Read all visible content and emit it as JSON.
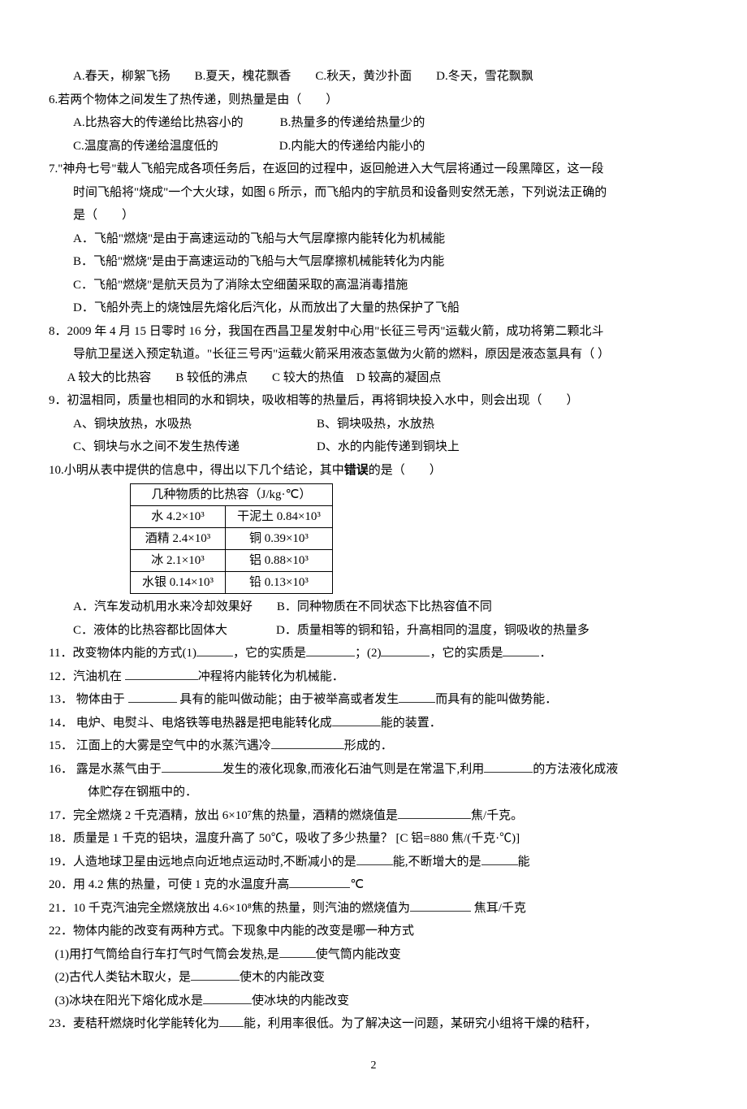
{
  "q5_opts": {
    "a": "A.春天，柳絮飞扬",
    "b": "B.夏天，槐花飘香",
    "c": "C.秋天，黄沙扑面",
    "d": "D.冬天，雪花飘飘"
  },
  "q6": {
    "stem": "6.若两个物体之间发生了热传递，则热量是由（　　）",
    "a": "A.比热容大的传递给比热容小的",
    "b": "B.热量多的传递给热量少的",
    "c": "C.温度高的传递给温度低的",
    "d": "D.内能大的传递给内能小的"
  },
  "q7": {
    "stem1": "7.\"神舟七号\"载人飞船完成各项任务后，在返回的过程中，返回舱进入大气层将通过一段黑障区，这一段",
    "stem2": "时间飞船将\"烧成\"一个大火球，如图 6 所示，而飞船内的宇航员和设备则安然无恙，下列说法正确的",
    "stem3": "是（　　）",
    "a": "A．飞船\"燃烧\"是由于高速运动的飞船与大气层摩擦内能转化为机械能",
    "b": "B．飞船\"燃烧\"是由于高速运动的飞船与大气层摩擦机械能转化为内能",
    "c": "C．飞船\"燃烧\"是航天员为了消除太空细菌采取的高温消毒措施",
    "d": "D．飞船外壳上的烧蚀层先熔化后汽化，从而放出了大量的热保护了飞船"
  },
  "q8": {
    "stem1": "8．2009 年 4 月 15 日零时 16 分，我国在西昌卫星发射中心用\"长征三号丙\"运载火箭，成功将第二颗北斗",
    "stem2": "导航卫星送入预定轨道。\"长征三号丙\"运载火箭采用液态氢做为火箭的燃料，原因是液态氢具有（ ）",
    "opts": "A 较大的比热容　　B 较低的沸点　　C 较大的热值　D 较高的凝固点"
  },
  "q9": {
    "stem": "9．初温相同，质量也相同的水和铜块，吸收相等的热量后，再将铜块投入水中，则会出现（　　）",
    "a": "A、铜块放热，水吸热",
    "b": "B、铜块吸热，水放热",
    "c": "C、铜块与水之间不发生热传递",
    "d": "D、水的内能传递到铜块上"
  },
  "q10": {
    "stem_pre": "10.小明从表中提供的信息中，得出以下几个结论，其中",
    "stem_bold": "错误",
    "stem_post": "的是（　　）",
    "a": "A．汽车发动机用水来冷却效果好",
    "b": "B．同种物质在不同状态下比热容值不同",
    "c": "C．液体的比热容都比固体大",
    "d": "D．质量相等的铜和铅，升高相同的温度，铜吸收的热量多"
  },
  "table": {
    "title": "几种物质的比热容（J/kg·℃）",
    "rows": [
      [
        "水 4.2×10³",
        "干泥土 0.84×10³"
      ],
      [
        "酒精 2.4×10³",
        "铜 0.39×10³"
      ],
      [
        "冰 2.1×10³",
        "铝 0.88×10³"
      ],
      [
        "水银 0.14×10³",
        "铅 0.13×10³"
      ]
    ]
  },
  "q11": {
    "pre": "11．改变物体内能的方式(1)",
    "mid1": "，它的实质是",
    "mid2": "；(2)",
    "mid3": "，它的实质是",
    "post": "．"
  },
  "q12": {
    "pre": "12．汽油机在 ",
    "post": "冲程将内能转化为机械能．"
  },
  "q13": {
    "pre": "13．  物体由于 ",
    "mid1": " 具有的能叫做动能；由于被举高或者发生",
    "post": "而具有的能叫做势能．"
  },
  "q14": {
    "pre": "14．  电炉、电熨斗、电烙铁等电热器是把电能转化成",
    "post": "能的装置．"
  },
  "q15": {
    "pre": "15．  江面上的大雾是空气中的水蒸汽遇冷",
    "post": "形成的．"
  },
  "q16": {
    "pre": "16．  露是水蒸气由于",
    "mid1": "发生的液化现象,而液化石油气则是在常温下,利用",
    "post": "的方法液化成液",
    "line2": "体贮存在钢瓶中的．"
  },
  "q17": {
    "pre": "17．完全燃烧 2 千克酒精，放出 6×10⁷焦的热量，酒精的燃烧值是",
    "post": "焦/千克。"
  },
  "q18": "18．质量是 1 千克的铝块，温度升高了 50℃，吸收了多少热量？ [C 铝=880 焦/(千克·℃)]",
  "q19": {
    "pre": "19．人造地球卫星由远地点向近地点运动时,不断减小的是",
    "mid": "能,不断增大的是",
    "post": "能"
  },
  "q20": {
    "pre": "20．用 4.2 焦的热量，可使 1 克的水温度升高",
    "post": "℃"
  },
  "q21": {
    "pre": "21．10 千克汽油完全燃烧放出 4.6×10⁸焦的热量，则汽油的燃烧值为",
    "post": " 焦耳/千克"
  },
  "q22": {
    "stem": "22．物体内能的改变有两种方式。下现象中内能的改变是哪一种方式",
    "a_pre": "(1)用打气筒给自行车打气时气筒会发热,是",
    "a_post": "使气筒内能改变",
    "b_pre": "(2)古代人类钻木取火，是",
    "b_post": "使木的内能改变",
    "c_pre": "(3)冰块在阳光下熔化成水是",
    "c_post": "使冰块的内能改变"
  },
  "q23": {
    "pre": "23．麦秸秆燃烧时化学能转化为",
    "post": "能，利用率很低。为了解决这一问题，某研究小组将干燥的秸秆，"
  },
  "page_num": "2"
}
